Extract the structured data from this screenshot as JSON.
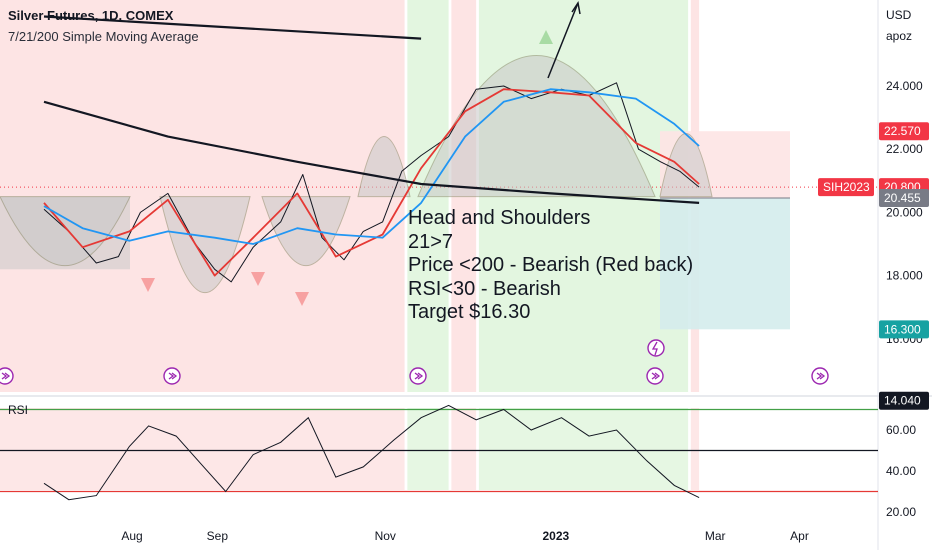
{
  "header": {
    "title": "Silver Futures, 1D, COMEX",
    "subtitle": "7/21/200 Simple Moving Average",
    "currency": "USD",
    "scale_mode": "apoz"
  },
  "annotation": {
    "lines": [
      "Head and Shoulders",
      "21>7",
      "Price <200 - Bearish (Red back)",
      "RSI<30 - Bearish",
      "Target $16.30"
    ]
  },
  "rsi_panel": {
    "label": "RSI"
  },
  "colors": {
    "bearish_bg": "#fde4e4",
    "bullish_bg": "#e3f6e0",
    "pattern_fill": "#c8c8c8",
    "sma7": "#e53935",
    "sma21": "#2196f3",
    "sma200": "#131722",
    "rsi_line": "#131722",
    "rsi_upper": "#43a047",
    "rsi_lower": "#e53935",
    "stop_zone": "#fde4e4",
    "target_zone": "#d4ecec",
    "down_marker": "#f7a1a1",
    "up_marker": "#a8dba4",
    "price_badge": "#f23645",
    "target_badge": "#17a2a2",
    "dark_badge": "#131722"
  },
  "chart_data": [
    {
      "type": "line",
      "title": "Silver Futures, 1D, COMEX",
      "x_ticks": [
        "Aug",
        "Sep",
        "Nov",
        "2023",
        "Mar",
        "Apr"
      ],
      "ylim": [
        14.0,
        26.5
      ],
      "y_ticks": [
        "24.000",
        "22.000",
        "20.000",
        "18.000",
        "16.000"
      ],
      "price_labels": [
        {
          "label": "22.570",
          "value": 22.57,
          "kind": "stop"
        },
        {
          "label": "SIH2023",
          "value": 20.8,
          "kind": "symbol"
        },
        {
          "label": "20.800",
          "value": 20.8,
          "kind": "price"
        },
        {
          "label": "20.455",
          "value": 20.455,
          "kind": "entry"
        },
        {
          "label": "16.300",
          "value": 16.3,
          "kind": "target"
        },
        {
          "label": "14.040",
          "value": 14.04,
          "kind": "dark"
        }
      ],
      "series": [
        {
          "name": "SMA 7",
          "x": [
            "2022-07-01",
            "2022-07-15",
            "2022-08-01",
            "2022-08-15",
            "2022-09-01",
            "2022-09-15",
            "2022-10-01",
            "2022-10-15",
            "2022-11-01",
            "2022-11-15",
            "2022-12-01",
            "2022-12-15",
            "2023-01-01",
            "2023-01-15",
            "2023-02-01",
            "2023-02-15",
            "2023-02-24"
          ],
          "y": [
            20.3,
            18.9,
            19.4,
            20.4,
            18.0,
            19.2,
            20.6,
            18.6,
            19.3,
            21.4,
            23.2,
            23.9,
            23.8,
            23.7,
            22.2,
            21.6,
            20.9
          ]
        },
        {
          "name": "SMA 21",
          "x": [
            "2022-07-01",
            "2022-07-15",
            "2022-08-01",
            "2022-08-15",
            "2022-09-01",
            "2022-09-15",
            "2022-10-01",
            "2022-10-15",
            "2022-11-01",
            "2022-11-15",
            "2022-12-01",
            "2022-12-15",
            "2023-01-01",
            "2023-01-15",
            "2023-02-01",
            "2023-02-15",
            "2023-02-24"
          ],
          "y": [
            20.2,
            19.5,
            19.1,
            19.4,
            19.2,
            19.0,
            19.5,
            19.3,
            19.2,
            20.3,
            22.4,
            23.5,
            23.9,
            23.8,
            23.6,
            22.8,
            22.1
          ]
        },
        {
          "name": "SMA 200",
          "x": [
            "2022-07-01",
            "2022-08-15",
            "2022-10-01",
            "2022-11-15",
            "2023-01-01",
            "2023-02-24"
          ],
          "y": [
            23.5,
            22.4,
            21.6,
            20.9,
            20.6,
            20.3
          ]
        },
        {
          "name": "SMA 200 (upper)",
          "x": [
            "2022-07-01",
            "2022-11-15"
          ],
          "y": [
            26.2,
            25.5
          ]
        }
      ],
      "price_path": {
        "x": [
          "2022-07-01",
          "2022-07-10",
          "2022-07-20",
          "2022-07-28",
          "2022-08-05",
          "2022-08-15",
          "2022-08-25",
          "2022-09-01",
          "2022-09-07",
          "2022-09-15",
          "2022-09-25",
          "2022-10-03",
          "2022-10-10",
          "2022-10-18",
          "2022-10-25",
          "2022-11-01",
          "2022-11-08",
          "2022-11-15",
          "2022-11-25",
          "2022-12-05",
          "2022-12-15",
          "2022-12-25",
          "2023-01-05",
          "2023-01-15",
          "2023-01-25",
          "2023-02-02",
          "2023-02-10",
          "2023-02-17",
          "2023-02-24"
        ],
        "y": [
          20.1,
          19.4,
          18.4,
          18.6,
          20.0,
          20.6,
          19.0,
          18.2,
          17.8,
          18.9,
          19.7,
          21.2,
          19.2,
          18.5,
          19.4,
          19.7,
          21.3,
          21.8,
          22.4,
          23.9,
          24.0,
          23.6,
          23.9,
          23.7,
          24.1,
          22.0,
          21.6,
          21.3,
          20.8
        ]
      },
      "xlim": [
        "2022-06-15",
        "2023-04-30"
      ],
      "background_regimes": [
        {
          "from": "2022-06-15",
          "to": "2022-11-09",
          "kind": "bearish"
        },
        {
          "from": "2022-11-10",
          "to": "2022-11-25",
          "kind": "bullish"
        },
        {
          "from": "2022-11-26",
          "to": "2022-12-05",
          "kind": "bearish"
        },
        {
          "from": "2022-12-06",
          "to": "2023-02-20",
          "kind": "bullish"
        },
        {
          "from": "2023-02-21",
          "to": "2023-02-24",
          "kind": "bearish"
        }
      ],
      "pattern_zone": {
        "top": 20.5
      }
    },
    {
      "type": "line",
      "title": "RSI",
      "ylim": [
        15,
        80
      ],
      "y_ticks": [
        "60.00",
        "40.00",
        "20.00"
      ],
      "levels": [
        70,
        50,
        30
      ],
      "series": [
        {
          "name": "RSI",
          "x": [
            "2022-07-01",
            "2022-07-10",
            "2022-07-20",
            "2022-08-01",
            "2022-08-08",
            "2022-08-18",
            "2022-08-28",
            "2022-09-05",
            "2022-09-15",
            "2022-09-25",
            "2022-10-05",
            "2022-10-15",
            "2022-10-25",
            "2022-11-05",
            "2022-11-15",
            "2022-11-25",
            "2022-12-05",
            "2022-12-15",
            "2022-12-25",
            "2023-01-05",
            "2023-01-15",
            "2023-01-25",
            "2023-02-05",
            "2023-02-15",
            "2023-02-24"
          ],
          "y": [
            34,
            26,
            28,
            52,
            62,
            57,
            42,
            30,
            48,
            54,
            66,
            37,
            42,
            55,
            66,
            72,
            65,
            70,
            60,
            66,
            57,
            60,
            45,
            33,
            27
          ]
        }
      ]
    }
  ]
}
